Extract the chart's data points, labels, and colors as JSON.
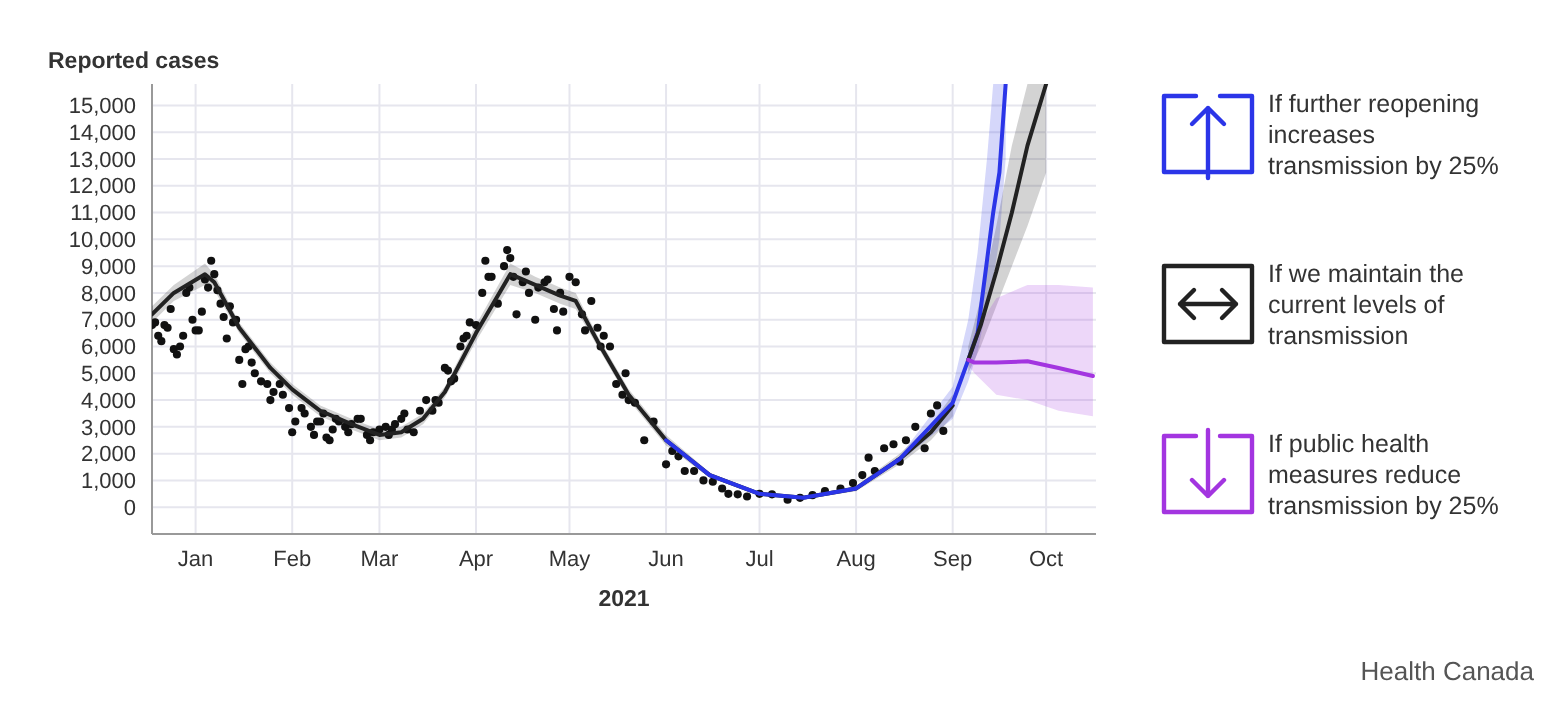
{
  "chart_data": {
    "type": "line",
    "ylabel": "Reported cases",
    "xlabel": "2021",
    "annotations": [
      "Health Canada"
    ],
    "xlim": [
      "2020-12-18",
      "2021-10-17"
    ],
    "ylim": [
      -1000,
      15800
    ],
    "xticks": [
      {
        "value": "2021-01-01",
        "label": "Jan"
      },
      {
        "value": "2021-02-01",
        "label": "Feb"
      },
      {
        "value": "2021-03-01",
        "label": "Mar"
      },
      {
        "value": "2021-04-01",
        "label": "Apr"
      },
      {
        "value": "2021-05-01",
        "label": "May"
      },
      {
        "value": "2021-06-01",
        "label": "Jun"
      },
      {
        "value": "2021-07-01",
        "label": "Jul"
      },
      {
        "value": "2021-08-01",
        "label": "Aug"
      },
      {
        "value": "2021-09-01",
        "label": "Sep"
      },
      {
        "value": "2021-10-01",
        "label": "Oct"
      }
    ],
    "yticks": [
      0,
      {
        "value": 1000,
        "label": "1,000"
      },
      {
        "value": 2000,
        "label": "2,000"
      },
      {
        "value": 3000,
        "label": "3,000"
      },
      {
        "value": 4000,
        "label": "4,000"
      },
      {
        "value": 5000,
        "label": "5,000"
      },
      {
        "value": 6000,
        "label": "6,000"
      },
      {
        "value": 7000,
        "label": "7,000"
      },
      {
        "value": 8000,
        "label": "8,000"
      },
      {
        "value": 9000,
        "label": "9,000"
      },
      {
        "value": 10000,
        "label": "10,000"
      },
      {
        "value": 11000,
        "label": "11,000"
      },
      {
        "value": 12000,
        "label": "12,000"
      },
      {
        "value": 13000,
        "label": "13,000"
      },
      {
        "value": 14000,
        "label": "14,000"
      },
      {
        "value": 15000,
        "label": "15,000"
      }
    ],
    "grid": true,
    "legend": "right",
    "series": [
      {
        "type": "scatter",
        "marker": "circle",
        "color": "#111111",
        "x": [
          "2020-12-18",
          "2020-12-19",
          "2020-12-20",
          "2020-12-21",
          "2020-12-22",
          "2020-12-23",
          "2020-12-24",
          "2020-12-25",
          "2020-12-26",
          "2020-12-27",
          "2020-12-28",
          "2020-12-29",
          "2020-12-30",
          "2020-12-31",
          "2021-01-01",
          "2021-01-02",
          "2021-01-03",
          "2021-01-04",
          "2021-01-05",
          "2021-01-06",
          "2021-01-07",
          "2021-01-08",
          "2021-01-09",
          "2021-01-10",
          "2021-01-11",
          "2021-01-12",
          "2021-01-13",
          "2021-01-14",
          "2021-01-15",
          "2021-01-16",
          "2021-01-17",
          "2021-01-18",
          "2021-01-19",
          "2021-01-20",
          "2021-01-22",
          "2021-01-24",
          "2021-01-25",
          "2021-01-26",
          "2021-01-28",
          "2021-01-29",
          "2021-01-31",
          "2021-02-01",
          "2021-02-02",
          "2021-02-04",
          "2021-02-05",
          "2021-02-07",
          "2021-02-08",
          "2021-02-09",
          "2021-02-10",
          "2021-02-11",
          "2021-02-12",
          "2021-02-13",
          "2021-02-14",
          "2021-02-15",
          "2021-02-16",
          "2021-02-18",
          "2021-02-19",
          "2021-02-20",
          "2021-02-22",
          "2021-02-23",
          "2021-02-25",
          "2021-02-26",
          "2021-02-27",
          "2021-03-01",
          "2021-03-03",
          "2021-03-04",
          "2021-03-05",
          "2021-03-06",
          "2021-03-08",
          "2021-03-09",
          "2021-03-10",
          "2021-03-12",
          "2021-03-14",
          "2021-03-16",
          "2021-03-18",
          "2021-03-19",
          "2021-03-20",
          "2021-03-22",
          "2021-03-23",
          "2021-03-24",
          "2021-03-25",
          "2021-03-27",
          "2021-03-28",
          "2021-03-29",
          "2021-03-30",
          "2021-04-01",
          "2021-04-03",
          "2021-04-04",
          "2021-04-05",
          "2021-04-06",
          "2021-04-08",
          "2021-04-10",
          "2021-04-11",
          "2021-04-12",
          "2021-04-13",
          "2021-04-14",
          "2021-04-16",
          "2021-04-17",
          "2021-04-18",
          "2021-04-20",
          "2021-04-21",
          "2021-04-23",
          "2021-04-24",
          "2021-04-26",
          "2021-04-27",
          "2021-04-28",
          "2021-04-29",
          "2021-05-01",
          "2021-05-03",
          "2021-05-05",
          "2021-05-06",
          "2021-05-08",
          "2021-05-10",
          "2021-05-11",
          "2021-05-12",
          "2021-05-14",
          "2021-05-16",
          "2021-05-18",
          "2021-05-19",
          "2021-05-20",
          "2021-05-22",
          "2021-05-25",
          "2021-05-28",
          "2021-06-01",
          "2021-06-03",
          "2021-06-05",
          "2021-06-07",
          "2021-06-10",
          "2021-06-13",
          "2021-06-16",
          "2021-06-19",
          "2021-06-21",
          "2021-06-24",
          "2021-06-27",
          "2021-07-01",
          "2021-07-05",
          "2021-07-10",
          "2021-07-14",
          "2021-07-18",
          "2021-07-22",
          "2021-07-27",
          "2021-07-31",
          "2021-08-03",
          "2021-08-05",
          "2021-08-07",
          "2021-08-10",
          "2021-08-13",
          "2021-08-15",
          "2021-08-17",
          "2021-08-20",
          "2021-08-23",
          "2021-08-25",
          "2021-08-27",
          "2021-08-29"
        ],
        "values": [
          6800,
          6900,
          6400,
          6200,
          6800,
          6700,
          7400,
          5900,
          5700,
          6000,
          6400,
          8000,
          8200,
          7000,
          6600,
          6600,
          7300,
          8500,
          8200,
          9200,
          8700,
          8100,
          7600,
          7100,
          6300,
          7500,
          6900,
          7000,
          5500,
          4600,
          5900,
          6000,
          5400,
          5000,
          4700,
          4600,
          4000,
          4300,
          4600,
          4200,
          3700,
          2800,
          3200,
          3700,
          3500,
          3000,
          2700,
          3200,
          3200,
          3500,
          2600,
          2500,
          2900,
          3300,
          3200,
          3000,
          2800,
          3100,
          3300,
          3300,
          2700,
          2500,
          2800,
          2900,
          3000,
          2700,
          2900,
          3100,
          3300,
          3500,
          2900,
          2800,
          3600,
          4000,
          3600,
          4000,
          3900,
          5200,
          5100,
          4700,
          4800,
          6000,
          6300,
          6400,
          6900,
          6800,
          8000,
          9200,
          8600,
          8600,
          7600,
          9000,
          9600,
          9300,
          8600,
          7200,
          8400,
          8800,
          8000,
          7000,
          8200,
          8400,
          8500,
          7400,
          6600,
          8000,
          7300,
          8600,
          8400,
          7200,
          6600,
          7700,
          6700,
          6000,
          6400,
          6000,
          4600,
          4200,
          5000,
          4000,
          3900,
          2500,
          3200,
          1600,
          2100,
          1900,
          1350,
          1350,
          1000,
          950,
          700,
          500,
          480,
          400,
          500,
          480,
          280,
          350,
          450,
          600,
          700,
          900,
          1200,
          1850,
          1350,
          2200,
          2350,
          1700,
          2500,
          3000,
          2200,
          3500,
          3800,
          2850
        ]
      },
      {
        "color": "#222222",
        "x": [
          "2020-12-18",
          "2020-12-25",
          "2021-01-04",
          "2021-01-07",
          "2021-01-15",
          "2021-01-25",
          "2021-02-01",
          "2021-02-10",
          "2021-02-20",
          "2021-03-01",
          "2021-03-08",
          "2021-03-15",
          "2021-03-22",
          "2021-04-01",
          "2021-04-12",
          "2021-04-20",
          "2021-04-28",
          "2021-05-03",
          "2021-05-10",
          "2021-05-20",
          "2021-06-01",
          "2021-06-15",
          "2021-07-01",
          "2021-07-15",
          "2021-08-01",
          "2021-08-15",
          "2021-08-25",
          "2021-09-01"
        ],
        "values": [
          7200,
          8000,
          8700,
          8400,
          6700,
          5200,
          4400,
          3600,
          3100,
          2700,
          2800,
          3300,
          4300,
          6500,
          8700,
          8300,
          7900,
          7700,
          6200,
          4200,
          2500,
          1200,
          500,
          350,
          700,
          1800,
          2800,
          3800
        ],
        "lower": [
          6900,
          7700,
          8300,
          8100,
          6500,
          5000,
          4200,
          3400,
          2900,
          2500,
          2600,
          3100,
          4100,
          6200,
          8300,
          8000,
          7600,
          7400,
          6000,
          4000,
          2300,
          1100,
          450,
          300,
          600,
          1600,
          2500,
          3400
        ],
        "upper": [
          7500,
          8300,
          9100,
          8700,
          6900,
          5400,
          4600,
          3800,
          3300,
          2900,
          3000,
          3500,
          4500,
          6800,
          9100,
          8600,
          8200,
          8000,
          6400,
          4400,
          2700,
          1300,
          550,
          400,
          800,
          2000,
          3100,
          4200
        ]
      },
      {
        "name": "If further reopening increases transmission by 25%",
        "color": "#2b35e8",
        "x": [
          "2021-06-01",
          "2021-06-15",
          "2021-07-01",
          "2021-07-15",
          "2021-08-01",
          "2021-08-15",
          "2021-09-01",
          "2021-09-06",
          "2021-09-09",
          "2021-09-12",
          "2021-09-14",
          "2021-09-16",
          "2021-09-18"
        ],
        "values": [
          2500,
          1200,
          500,
          350,
          700,
          1800,
          3900,
          5500,
          6500,
          9200,
          11000,
          12500,
          15800
        ],
        "lower": [
          2500,
          1200,
          500,
          350,
          700,
          1700,
          3300,
          4700,
          5800,
          7500,
          8500,
          10000,
          13000
        ],
        "upper": [
          2500,
          1200,
          500,
          350,
          700,
          1900,
          4500,
          7000,
          9500,
          13000,
          15800,
          15800,
          15800
        ]
      },
      {
        "name": "If we maintain the current levels of transmission",
        "color": "#222222",
        "x": [
          "2021-09-06",
          "2021-09-10",
          "2021-09-15",
          "2021-09-20",
          "2021-09-25",
          "2021-10-01"
        ],
        "values": [
          5500,
          6800,
          8800,
          11000,
          13500,
          15800
        ],
        "lower": [
          5000,
          6000,
          7500,
          9000,
          10500,
          12500
        ],
        "upper": [
          6000,
          7800,
          10500,
          13500,
          15800,
          15800
        ]
      },
      {
        "name": "If public health measures reduce transmission by 25%",
        "color": "#a335e0",
        "x": [
          "2021-09-06",
          "2021-09-08",
          "2021-09-15",
          "2021-09-25",
          "2021-10-05",
          "2021-10-16"
        ],
        "values": [
          5500,
          5400,
          5400,
          5450,
          5200,
          4900
        ],
        "lower": [
          5300,
          5000,
          4200,
          4000,
          3600,
          3400
        ],
        "upper": [
          5700,
          6500,
          7800,
          8300,
          8300,
          8200
        ]
      }
    ]
  }
}
